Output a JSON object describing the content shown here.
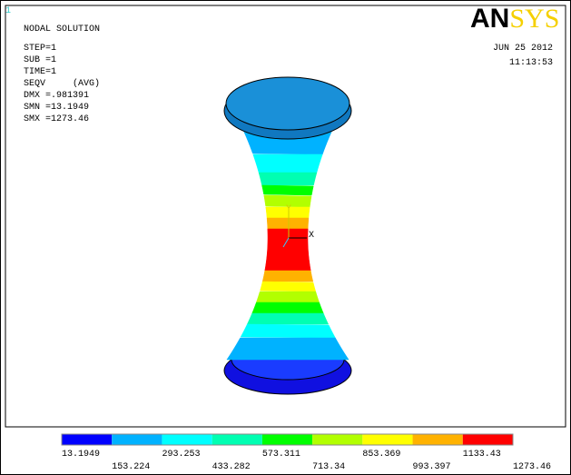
{
  "window_number": "1",
  "header": {
    "title": "NODAL SOLUTION",
    "lines": [
      "STEP=1",
      "SUB =1",
      "TIME=1",
      "SEQV     (AVG)",
      "DMX =.981391",
      "SMN =13.1949",
      "SMX =1273.46"
    ]
  },
  "logo": [
    "AN",
    "SYS"
  ],
  "date": "JUN 25 2012",
  "time": "11:13:53",
  "axes": {
    "y": "Y",
    "x": "X"
  },
  "legend": {
    "labels": [
      "13.1949",
      "153.224",
      "293.253",
      "433.282",
      "573.311",
      "713.34",
      "853.369",
      "993.397",
      "1133.43",
      "1273.46"
    ]
  }
}
